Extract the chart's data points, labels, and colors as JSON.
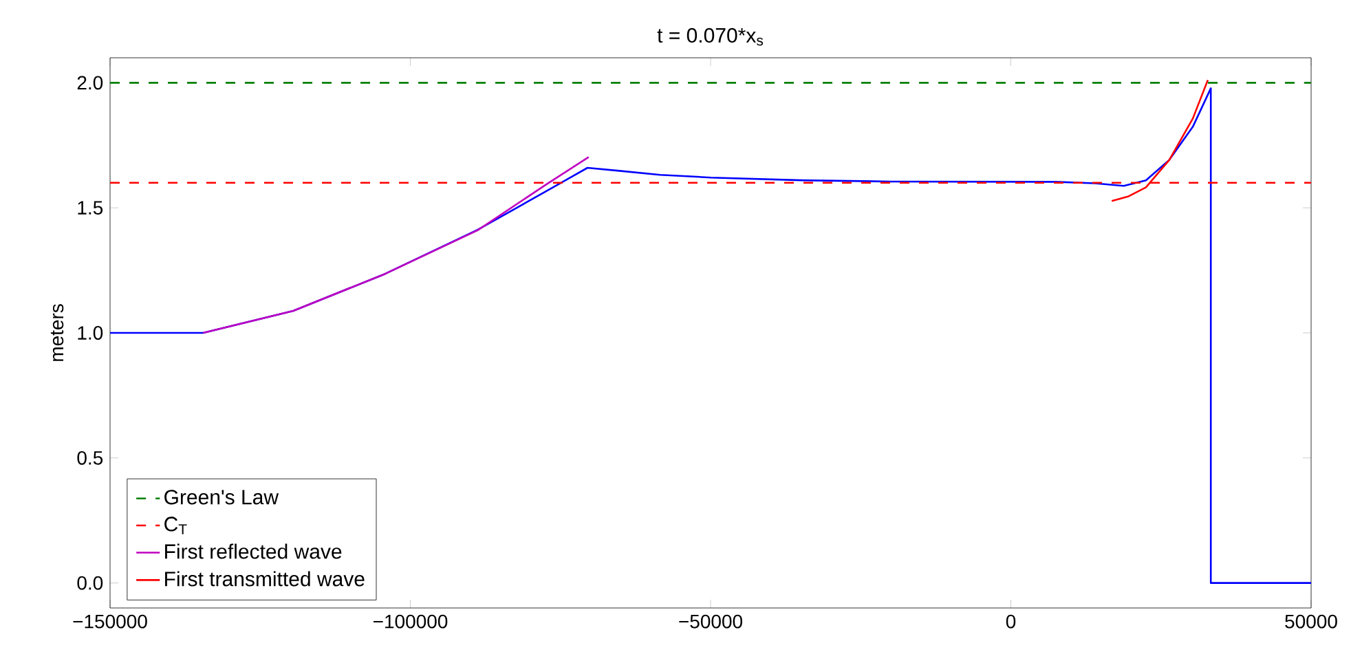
{
  "chart_data": {
    "type": "line",
    "title": "t = 0.070*x$_{s}$",
    "ylabel": "meters",
    "xlim": [
      -150000,
      50000
    ],
    "ylim": [
      -0.1,
      2.1
    ],
    "xticks": [
      {
        "value": -150000,
        "label": "−150000"
      },
      {
        "value": -100000,
        "label": "−100000"
      },
      {
        "value": -50000,
        "label": "−50000"
      },
      0,
      50000
    ],
    "yticks": [
      {
        "value": 0,
        "label": "0.0"
      },
      {
        "value": 0.5,
        "label": "0.5"
      },
      {
        "value": 1,
        "label": "1.0"
      },
      {
        "value": 1.5,
        "label": "1.5"
      },
      {
        "value": 2,
        "label": "2.0"
      }
    ],
    "legend": "bottom left",
    "grid": false,
    "marker": "none",
    "series": [
      {
        "color": "#0000ff",
        "line_style": "solid",
        "x": [
          -150000,
          -134500,
          -119500,
          -104200,
          -88800,
          -77400,
          -70500,
          -65200,
          -58400,
          -49900,
          -34800,
          -20000,
          7400,
          14000,
          18800,
          22500,
          26400,
          30300,
          33300,
          33300,
          50000
        ],
        "values": [
          1.0,
          1.0,
          1.088,
          1.236,
          1.412,
          1.566,
          1.66,
          1.648,
          1.632,
          1.621,
          1.61,
          1.605,
          1.604,
          1.598,
          1.588,
          1.61,
          1.692,
          1.824,
          1.978,
          0.0,
          0.0
        ]
      },
      {
        "name": "Green's Law",
        "color": "#008000",
        "line_style": "dashed",
        "x": [
          -150000,
          50000
        ],
        "values": [
          2.0,
          2.0
        ]
      },
      {
        "name": "C$_{T}$",
        "color": "#ff0000",
        "line_style": "dashed",
        "x": [
          -150000,
          50000
        ],
        "values": [
          1.6,
          1.6
        ]
      },
      {
        "name": "First reflected wave",
        "color": "#bf00bf",
        "line_style": "solid",
        "x": [
          -134500,
          -119500,
          -104200,
          -88800,
          -77400,
          -70300
        ],
        "values": [
          1.0,
          1.088,
          1.236,
          1.41,
          1.593,
          1.703
        ]
      },
      {
        "name": "First transmitted wave",
        "color": "#ff0000",
        "line_style": "solid",
        "x": [
          16800,
          19500,
          22500,
          26400,
          30300,
          32800
        ],
        "values": [
          1.527,
          1.545,
          1.582,
          1.692,
          1.857,
          2.011
        ]
      }
    ]
  }
}
